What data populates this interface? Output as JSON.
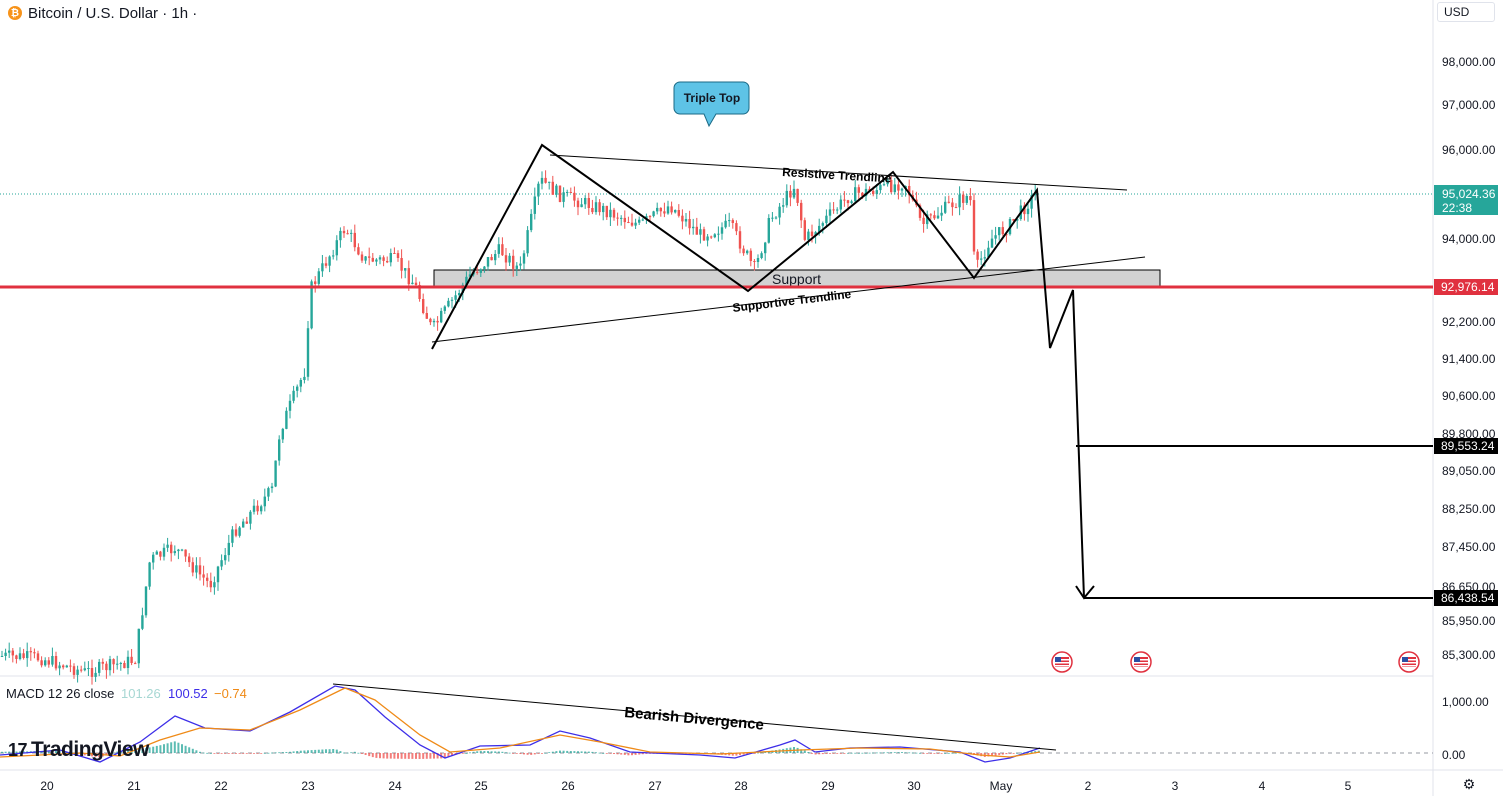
{
  "header": {
    "coin_glyph": "₿",
    "title": "Bitcoin / U.S. Dollar · 1h ·",
    "currency": "USD"
  },
  "branding": {
    "logo_text": "TradingView",
    "logo_mark": "17"
  },
  "icons": {
    "settings": "settings-icon",
    "coin": "bitcoin-icon",
    "flags": "us-flag-icon"
  },
  "colors": {
    "up": "#26a69a",
    "down": "#ef5350",
    "price_line": "#e0313f",
    "current_price_bg": "#26a69a",
    "support_zone": "#c7c7c7",
    "callout": "#5ec3e6",
    "macd_line": "#3d2ee8",
    "signal_line": "#ef8a17"
  },
  "chart_data": {
    "type": "candlestick",
    "symbol": "Bitcoin / U.S. Dollar",
    "interval": "1h",
    "y_ticks": [
      "98,000.00",
      "97,000.00",
      "96,000.00",
      "94,000.00",
      "92,200.00",
      "91,400.00",
      "90,600.00",
      "89,800.00",
      "89,050.00",
      "88,250.00",
      "87,450.00",
      "86,650.00",
      "85,950.00",
      "85,300.00"
    ],
    "x_ticks": [
      "20",
      "21",
      "22",
      "23",
      "24",
      "25",
      "26",
      "27",
      "28",
      "29",
      "30",
      "May",
      "2",
      "3",
      "4",
      "5"
    ],
    "current_price": {
      "value": "95,024.36",
      "countdown": "22:38"
    },
    "price_labels": [
      {
        "value": "92,976.14",
        "color": "#e0313f"
      },
      {
        "value": "89,553.24",
        "color": "#000000"
      },
      {
        "value": "86,438.54",
        "color": "#000000"
      }
    ],
    "annotations": {
      "callout": "Triple Top",
      "support": "Support",
      "resistive_trendline": "Resistive Trendline",
      "supportive_trendline": "Supportive Trendline",
      "bearish_divergence": "Bearish Divergence"
    },
    "macd": {
      "label": "MACD 12 26 close",
      "histogram": "101.26",
      "macd": "100.52",
      "signal": "−0.74",
      "y_ticks": [
        "1,000.00",
        "0.00"
      ]
    }
  }
}
